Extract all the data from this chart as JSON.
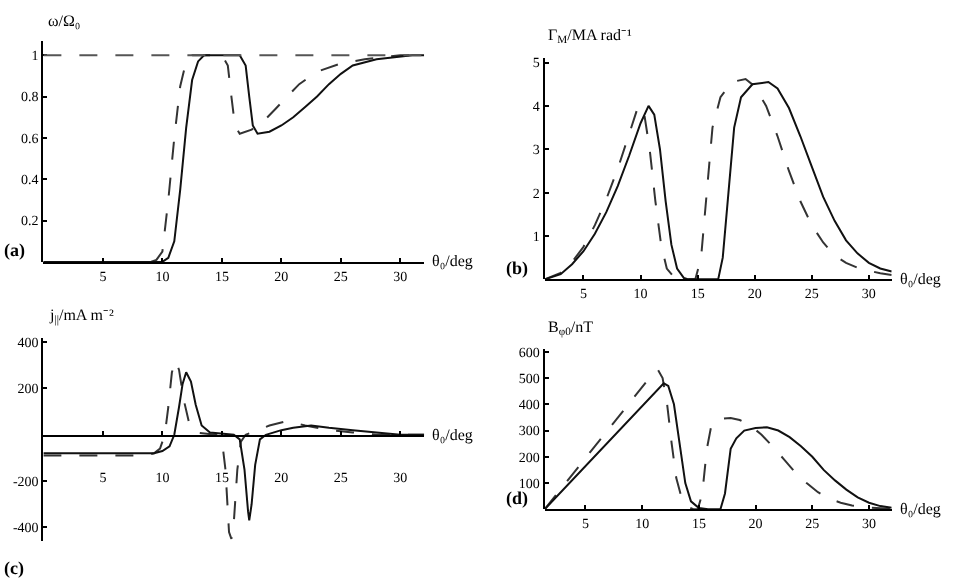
{
  "chart_data": [
    {
      "type": "line",
      "ylabel": "ω/Ω₀",
      "xlabel": "θ₀/deg",
      "annotations": [
        "(a)"
      ],
      "xlim": [
        0,
        32
      ],
      "xticks": [
        5,
        10,
        15,
        20,
        25,
        30
      ],
      "ylim": [
        0,
        1.07
      ],
      "yticks": [
        0.2,
        0.4,
        0.6,
        0.8,
        1
      ],
      "ref_lines": [
        {
          "axis": "y",
          "value": 1,
          "color": "#555555",
          "line_style": "dashed"
        }
      ],
      "series": [
        {
          "color": "#333333",
          "line_style": "dashed",
          "x": [
            0,
            9,
            9.5,
            10,
            10.5,
            11,
            11.5,
            12,
            12.5,
            15,
            15.5,
            15.8,
            16.1,
            16.5,
            17.5,
            18.5,
            19.5,
            20.5,
            21.5,
            23,
            25,
            27,
            30,
            32
          ],
          "values": [
            0,
            0,
            0.01,
            0.05,
            0.3,
            0.6,
            0.85,
            0.97,
            1,
            1,
            0.95,
            0.8,
            0.66,
            0.62,
            0.64,
            0.68,
            0.74,
            0.8,
            0.86,
            0.92,
            0.96,
            0.98,
            1,
            1
          ]
        },
        {
          "color": "#111111",
          "line_style": "solid",
          "x": [
            0,
            10,
            10.5,
            11,
            11.5,
            12,
            12.5,
            13,
            13.5,
            16.5,
            17,
            17.3,
            17.6,
            18,
            19,
            20,
            21,
            22,
            23,
            24,
            25,
            26,
            28,
            31,
            32
          ],
          "values": [
            0,
            0,
            0.02,
            0.1,
            0.35,
            0.65,
            0.88,
            0.97,
            1,
            1,
            0.95,
            0.8,
            0.66,
            0.62,
            0.63,
            0.66,
            0.7,
            0.75,
            0.8,
            0.86,
            0.91,
            0.95,
            0.98,
            1,
            1
          ]
        }
      ]
    },
    {
      "type": "line",
      "ylabel": "Γ$_{M}$/MA rad⁻¹",
      "xlabel": "θ₀/deg",
      "annotations": [
        "(b)"
      ],
      "xlim": [
        1.6,
        32
      ],
      "xticks": [
        5,
        10,
        15,
        20,
        25,
        30
      ],
      "ylim": [
        0,
        5.1
      ],
      "yticks": [
        1,
        2,
        3,
        4,
        5
      ],
      "series": [
        {
          "color": "#333333",
          "line_style": "dashed",
          "x": [
            1.6,
            3,
            4,
            5,
            6,
            7,
            8,
            9,
            9.8,
            10.3,
            10.8,
            11.3,
            11.8,
            12.3,
            13,
            13.5,
            14.8,
            15.3,
            15.8,
            16.3,
            17,
            18,
            19.2,
            20,
            21,
            22,
            23,
            24,
            25,
            26,
            27,
            28,
            29,
            30,
            31,
            32
          ],
          "values": [
            0,
            0.15,
            0.4,
            0.75,
            1.25,
            1.85,
            2.55,
            3.35,
            4,
            3.85,
            3,
            1.8,
            0.8,
            0.25,
            0.03,
            0,
            0,
            0.5,
            2,
            3.5,
            4.2,
            4.55,
            4.62,
            4.45,
            4,
            3.3,
            2.5,
            1.8,
            1.25,
            0.85,
            0.55,
            0.38,
            0.27,
            0.2,
            0.14,
            0.1
          ]
        },
        {
          "color": "#111111",
          "line_style": "solid",
          "x": [
            1.6,
            3,
            4,
            5,
            6,
            7,
            8,
            9,
            10,
            10.7,
            11.2,
            11.7,
            12.2,
            12.7,
            13.2,
            13.8,
            14.2,
            16.8,
            17.2,
            17.7,
            18.2,
            18.8,
            19.8,
            21.2,
            22,
            23,
            24,
            25,
            26,
            27,
            28,
            29,
            30,
            31,
            32
          ],
          "values": [
            0,
            0.12,
            0.35,
            0.65,
            1.05,
            1.55,
            2.15,
            2.85,
            3.6,
            4,
            3.8,
            3,
            1.8,
            0.8,
            0.25,
            0.03,
            0,
            0,
            0.5,
            2,
            3.5,
            4.2,
            4.5,
            4.55,
            4.4,
            3.95,
            3.3,
            2.6,
            1.9,
            1.35,
            0.9,
            0.6,
            0.38,
            0.25,
            0.18
          ]
        }
      ]
    },
    {
      "type": "line",
      "ylabel": "j$_{||}$/mA m⁻²",
      "xlabel": "θ₀/deg",
      "annotations": [
        "(c)"
      ],
      "xlim": [
        0,
        32
      ],
      "xticks": [
        5,
        10,
        15,
        20,
        25,
        30
      ],
      "ylim": [
        -460,
        420
      ],
      "yticks": [
        -400,
        -200,
        200,
        400
      ],
      "series": [
        {
          "color": "#333333",
          "line_style": "dashed",
          "x": [
            0,
            8.5,
            9.3,
            9.8,
            10.2,
            10.5,
            10.8,
            11.1,
            11.4,
            11.8,
            12.3,
            12.8,
            14.5,
            15,
            15.3,
            15.6,
            15.8,
            16,
            16.3,
            16.6,
            17,
            18,
            19,
            20.5,
            22,
            24,
            26,
            28,
            32
          ],
          "values": [
            -90,
            -90,
            -80,
            -60,
            0,
            120,
            270,
            320,
            280,
            150,
            40,
            10,
            0,
            -20,
            -150,
            -420,
            -450,
            -380,
            -150,
            -30,
            0,
            20,
            40,
            60,
            40,
            20,
            10,
            0,
            0
          ]
        },
        {
          "color": "#111111",
          "line_style": "solid",
          "x": [
            0,
            9.3,
            10,
            10.6,
            11,
            11.4,
            11.7,
            12,
            12.4,
            12.8,
            13.3,
            14,
            16,
            16.5,
            16.9,
            17.2,
            17.3,
            17.5,
            17.8,
            18.2,
            18.7,
            20,
            21,
            22.5,
            24,
            26,
            28,
            30,
            32
          ],
          "values": [
            -80,
            -80,
            -70,
            -50,
            0,
            120,
            220,
            270,
            230,
            130,
            40,
            10,
            0,
            -20,
            -150,
            -330,
            -370,
            -300,
            -130,
            -20,
            0,
            20,
            30,
            40,
            30,
            20,
            10,
            0,
            0
          ]
        }
      ]
    },
    {
      "type": "line",
      "ylabel": "B$_{φ0}$/nT",
      "xlabel": "θ₀/deg",
      "annotations": [
        "(d)"
      ],
      "xlim": [
        1.4,
        32
      ],
      "xticks": [
        5,
        10,
        15,
        20,
        25,
        30
      ],
      "ylim": [
        0,
        610
      ],
      "yticks": [
        100,
        200,
        300,
        400,
        500,
        600
      ],
      "series": [
        {
          "color": "#333333",
          "line_style": "dashed",
          "x": [
            1.4,
            11,
            11.4,
            11.8,
            12.2,
            12.6,
            13,
            13.5,
            14,
            14.5,
            14.9,
            15.3,
            15.7,
            16.1,
            16.8,
            17.8,
            18.6,
            19.5,
            20.5,
            21.5,
            22.5,
            23.5,
            24.5,
            25.5,
            26.5,
            27.5,
            28.5,
            30,
            32
          ],
          "values": [
            0,
            520,
            530,
            500,
            400,
            250,
            120,
            40,
            10,
            0,
            0,
            60,
            230,
            320,
            345,
            348,
            340,
            320,
            285,
            240,
            190,
            140,
            100,
            65,
            40,
            25,
            14,
            6,
            2
          ]
        },
        {
          "color": "#111111",
          "line_style": "solid",
          "x": [
            1.4,
            11.9,
            12.3,
            12.8,
            13.3,
            13.8,
            14.3,
            15,
            15.8,
            16.9,
            17.3,
            17.8,
            18.3,
            19,
            20,
            21,
            22,
            23,
            24,
            25,
            26,
            27,
            28,
            29,
            30,
            31,
            32
          ],
          "values": [
            0,
            480,
            470,
            400,
            250,
            100,
            30,
            5,
            0,
            0,
            60,
            230,
            270,
            300,
            310,
            312,
            300,
            275,
            240,
            200,
            150,
            110,
            75,
            45,
            25,
            12,
            6
          ]
        }
      ]
    }
  ]
}
